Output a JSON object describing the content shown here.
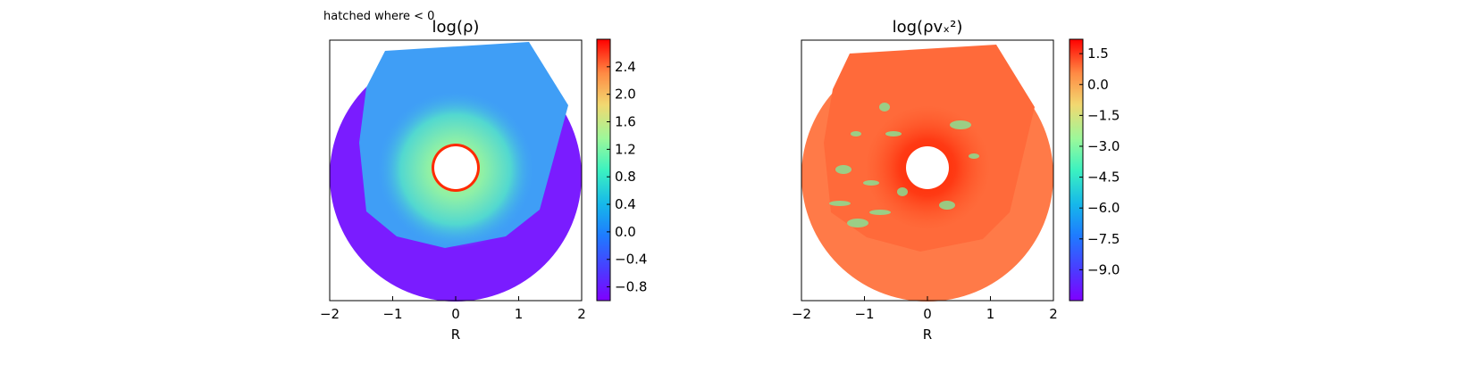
{
  "figure": {
    "annotation": "hatched where < 0"
  },
  "chart_data": [
    {
      "type": "heatmap",
      "title": "log(ρ)",
      "xlabel": "R",
      "xlim": [
        -2,
        2
      ],
      "x_ticks": [
        "−2",
        "−1",
        "0",
        "1",
        "2"
      ],
      "x_tick_values": [
        -2,
        -1,
        0,
        1,
        2
      ],
      "domain": "annulus, inner radius ≈ 0.3, outer radius 2",
      "colormap": "rainbow",
      "colorbar": {
        "range": [
          -1.0,
          2.8
        ],
        "ticks": [
          "2.4",
          "2.0",
          "1.6",
          "1.2",
          "0.8",
          "0.4",
          "0.0",
          "−0.4",
          "−0.8"
        ],
        "tick_values": [
          2.4,
          2.0,
          1.6,
          1.2,
          0.8,
          0.4,
          0.0,
          -0.4,
          -0.8
        ]
      },
      "colors": {
        "background_disk": "#7a1cff",
        "shell": "#3f9ef6",
        "core": "#6ff0a0",
        "rim": "#ff2a00"
      }
    },
    {
      "type": "heatmap",
      "title": "log(ρvₓ²)",
      "xlabel": "R",
      "xlim": [
        -2,
        2
      ],
      "x_ticks": [
        "−2",
        "−1",
        "0",
        "1",
        "2"
      ],
      "x_tick_values": [
        -2,
        -1,
        0,
        1,
        2
      ],
      "domain": "annulus, inner radius ≈ 0.3, outer radius 2",
      "colormap": "rainbow",
      "colorbar": {
        "range": [
          -10.5,
          2.2
        ],
        "ticks": [
          "1.5",
          "0.0",
          "−1.5",
          "−3.0",
          "−4.5",
          "−6.0",
          "−7.5",
          "−9.0"
        ],
        "tick_values": [
          1.5,
          0.0,
          -1.5,
          -3.0,
          -4.5,
          -6.0,
          -7.5,
          -9.0
        ]
      },
      "colors": {
        "background_disk": "#ff7a48",
        "shell": "#ff6a3a",
        "core": "#ff3a1a",
        "filaments": "#7af0a0"
      }
    }
  ]
}
